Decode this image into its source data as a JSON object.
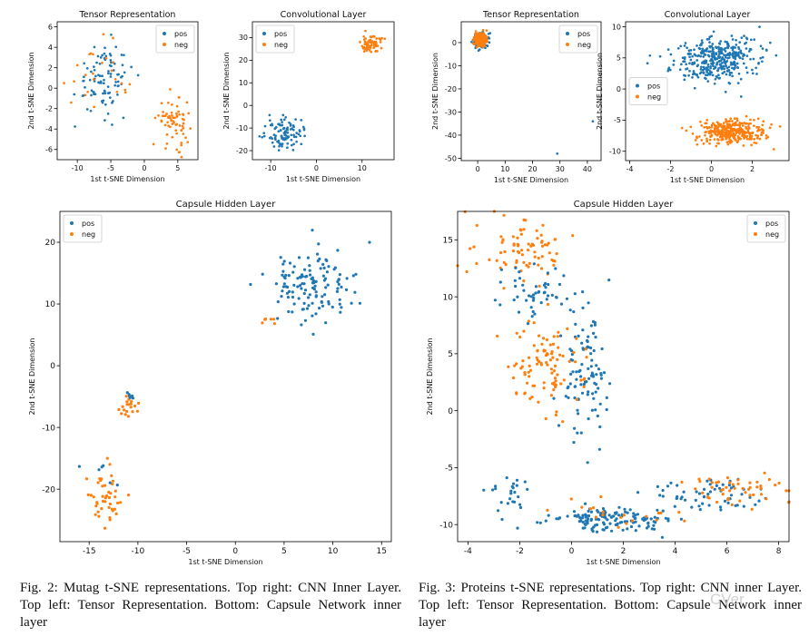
{
  "colors": {
    "pos": "#1f77b4",
    "neg": "#ff7f0e",
    "axis": "#000000",
    "text": "#111111"
  },
  "captions": {
    "left": "Fig. 2: Mutag t-SNE representations. Top right: CNN Inner Layer. Top left: Tensor Representation. Bottom: Capsule Network inner layer",
    "right": "Fig. 3: Proteins t-SNE representations. Top right: CNN inner Layer. Top left: Tensor Representation. Bottom: Capsule Network inner layer"
  },
  "watermark": "CVer",
  "chart_data": [
    {
      "id": "mutag-tensor",
      "type": "scatter",
      "title": "Tensor Representation",
      "xlabel": "1st t-SNE Dimension",
      "ylabel": "2nd t-SNE Dimension",
      "xlim": [
        -13,
        8
      ],
      "ylim": [
        -7,
        6.5
      ],
      "xticks": [
        -10,
        -5,
        0,
        5
      ],
      "yticks": [
        -6,
        -4,
        -2,
        0,
        2,
        4,
        6
      ],
      "legend": "upper right",
      "series_names": [
        "pos",
        "neg"
      ],
      "clusters": [
        {
          "series": "pos",
          "n": 95,
          "cx": -6,
          "cy": 1,
          "sx": 2.9,
          "sy": 2.3
        },
        {
          "series": "neg",
          "n": 70,
          "cx": 4.5,
          "cy": -3.2,
          "sx": 1.6,
          "sy": 1.5
        },
        {
          "series": "neg",
          "n": 25,
          "cx": -7,
          "cy": 0.5,
          "sx": 3,
          "sy": 2.5
        }
      ]
    },
    {
      "id": "mutag-conv",
      "type": "scatter",
      "title": "Convolutional Layer",
      "xlabel": "1st t-SNE Dimension",
      "ylabel": "2nd t-SNE Dimension",
      "xlim": [
        -14,
        17
      ],
      "ylim": [
        -24,
        37
      ],
      "xticks": [
        -10,
        0,
        10
      ],
      "yticks": [
        -20,
        -10,
        0,
        10,
        20,
        30
      ],
      "legend": "upper left",
      "series_names": [
        "pos",
        "neg"
      ],
      "clusters": [
        {
          "series": "pos",
          "n": 110,
          "cx": -7,
          "cy": -12,
          "sx": 2.5,
          "sy": 4.5
        },
        {
          "series": "neg",
          "n": 70,
          "cx": 12,
          "cy": 27,
          "sx": 1.6,
          "sy": 2.5
        }
      ]
    },
    {
      "id": "mutag-capsule",
      "type": "scatter",
      "title": "Capsule Hidden Layer",
      "xlabel": "1st t-SNE Dimension",
      "ylabel": "2nd t-SNE Dimension",
      "xlim": [
        -18,
        16
      ],
      "ylim": [
        -28.5,
        25
      ],
      "xticks": [
        -15,
        -10,
        -5,
        0,
        5,
        10,
        15
      ],
      "yticks": [
        -20,
        -10,
        0,
        10,
        20
      ],
      "legend": "upper left",
      "series_names": [
        "pos",
        "neg"
      ],
      "clusters": [
        {
          "series": "pos",
          "n": 130,
          "cx": 8,
          "cy": 13,
          "sx": 3.2,
          "sy": 4
        },
        {
          "series": "neg",
          "n": 6,
          "cx": 3,
          "cy": 7.5,
          "sx": 1.5,
          "sy": 0.8
        },
        {
          "series": "neg",
          "n": 20,
          "cx": -11,
          "cy": -6.5,
          "sx": 0.6,
          "sy": 1.2
        },
        {
          "series": "pos",
          "n": 6,
          "cx": -10.8,
          "cy": -5,
          "sx": 0.4,
          "sy": 0.6
        },
        {
          "series": "neg",
          "n": 45,
          "cx": -13.5,
          "cy": -21,
          "sx": 1.2,
          "sy": 3
        },
        {
          "series": "pos",
          "n": 6,
          "cx": -14,
          "cy": -18,
          "sx": 1.2,
          "sy": 1.5
        }
      ]
    },
    {
      "id": "proteins-tensor",
      "type": "scatter",
      "title": "Tensor Representation",
      "xlabel": "1st t-SNE Dimension",
      "ylabel": "2nd t-SNE Dimension",
      "xlim": [
        -6,
        45
      ],
      "ylim": [
        -51,
        9
      ],
      "xticks": [
        0,
        10,
        20,
        30,
        40
      ],
      "yticks": [
        -50,
        -40,
        -30,
        -20,
        -10,
        0
      ],
      "legend": "upper right",
      "series_names": [
        "pos",
        "neg"
      ],
      "clusters": [
        {
          "series": "pos",
          "n": 250,
          "cx": 1,
          "cy": 1,
          "sx": 1.6,
          "sy": 2.2
        },
        {
          "series": "neg",
          "n": 200,
          "cx": 1,
          "cy": 1.5,
          "sx": 1.4,
          "sy": 1.8
        }
      ],
      "outliers": [
        {
          "series": "pos",
          "x": 42,
          "y": -34
        },
        {
          "series": "pos",
          "x": 29,
          "y": -48
        }
      ]
    },
    {
      "id": "proteins-conv",
      "type": "scatter",
      "title": "Convolutional Layer",
      "xlabel": "1st t-SNE Dimension",
      "ylabel": "2nd t-SNE Dimension",
      "xlim": [
        -4.2,
        3.8
      ],
      "ylim": [
        -11.5,
        10.8
      ],
      "xticks": [
        -4,
        -2,
        0,
        2
      ],
      "yticks": [
        -10,
        -5,
        0,
        5,
        10
      ],
      "legend": "center left",
      "series_names": [
        "pos",
        "neg"
      ],
      "clusters": [
        {
          "series": "pos",
          "n": 380,
          "cx": 0.3,
          "cy": 4.8,
          "sx": 1.3,
          "sy": 2.4
        },
        {
          "series": "neg",
          "n": 320,
          "cx": 1,
          "cy": -6.8,
          "sx": 1.1,
          "sy": 1.3
        }
      ]
    },
    {
      "id": "proteins-capsule",
      "type": "scatter",
      "title": "Capsule Hidden Layer",
      "xlabel": "1st t-SNE Dimension",
      "ylabel": "2nd t-SNE Dimension",
      "xlim": [
        -4.4,
        8.4
      ],
      "ylim": [
        -11.5,
        17.5
      ],
      "xticks": [
        -4,
        -2,
        0,
        2,
        4,
        6,
        8
      ],
      "yticks": [
        -10,
        -5,
        0,
        5,
        10,
        15
      ],
      "legend": "upper right",
      "series_names": [
        "pos",
        "neg"
      ],
      "clusters": [
        {
          "series": "neg",
          "n": 80,
          "cx": -1.8,
          "cy": 14,
          "sx": 1.2,
          "sy": 1.8
        },
        {
          "series": "pos",
          "n": 50,
          "cx": -1.5,
          "cy": 10.5,
          "sx": 1,
          "sy": 1.5
        },
        {
          "series": "pos",
          "n": 100,
          "cx": 0.6,
          "cy": 3.5,
          "sx": 0.6,
          "sy": 4
        },
        {
          "series": "neg",
          "n": 100,
          "cx": -1,
          "cy": 4,
          "sx": 1,
          "sy": 2.5
        },
        {
          "series": "pos",
          "n": 140,
          "cx": 1.5,
          "cy": -9.5,
          "sx": 1.6,
          "sy": 0.8
        },
        {
          "series": "pos",
          "n": 60,
          "cx": 5.5,
          "cy": -7.5,
          "sx": 1.5,
          "sy": 1
        },
        {
          "series": "neg",
          "n": 50,
          "cx": 6.5,
          "cy": -7,
          "sx": 1.4,
          "sy": 1
        },
        {
          "series": "pos",
          "n": 25,
          "cx": -2.5,
          "cy": -7.5,
          "sx": 0.5,
          "sy": 1.5
        },
        {
          "series": "neg",
          "n": 20,
          "cx": 1.5,
          "cy": -9.2,
          "sx": 1.5,
          "sy": 0.8
        }
      ]
    }
  ]
}
